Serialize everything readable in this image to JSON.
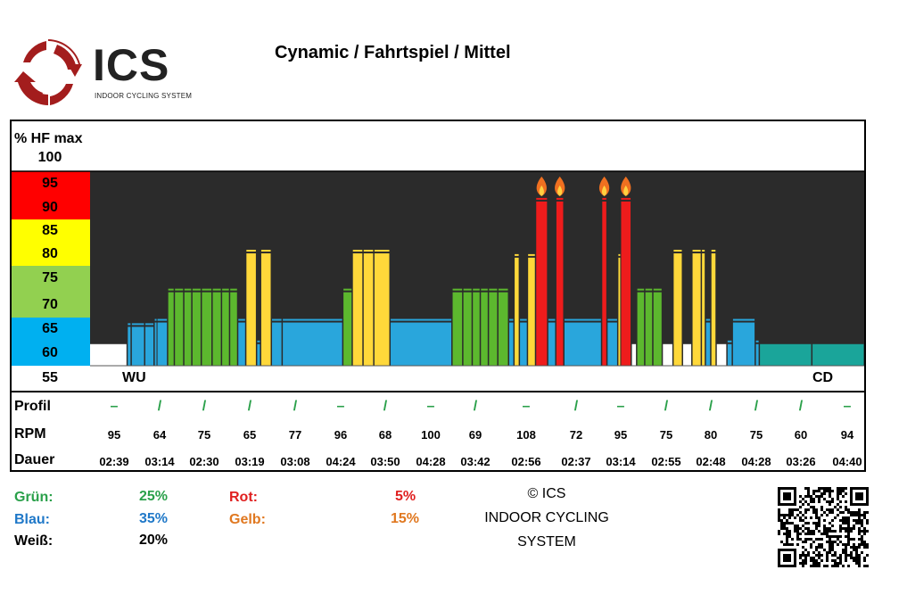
{
  "header": {
    "logo_text": "ICS",
    "logo_subtitle": "INDOOR CYCLING SYSTEM",
    "title": "Cynamic / Fahrtspiel / Mittel"
  },
  "axis": {
    "label": "% HF max",
    "levels": [
      "100",
      "95",
      "90",
      "85",
      "80",
      "75",
      "70",
      "65",
      "60",
      "55"
    ]
  },
  "markers": {
    "start": "WU",
    "end": "CD"
  },
  "rows": {
    "profil": "Profil",
    "rpm": "RPM",
    "dauer": "Dauer"
  },
  "table": {
    "profil": [
      "–",
      "/",
      "/",
      "/",
      "/",
      "–",
      "/",
      "–",
      "/",
      "–",
      "/",
      "–",
      "/",
      "/",
      "/",
      "/",
      "–"
    ],
    "rpm": [
      "95",
      "64",
      "75",
      "65",
      "77",
      "96",
      "68",
      "100",
      "69",
      "108",
      "72",
      "95",
      "75",
      "80",
      "75",
      "60",
      "94"
    ],
    "dauer": [
      "02:39",
      "03:14",
      "02:30",
      "03:19",
      "03:08",
      "04:24",
      "03:50",
      "04:28",
      "03:42",
      "02:56",
      "02:37",
      "03:14",
      "02:55",
      "02:48",
      "04:28",
      "03:26",
      "04:40"
    ]
  },
  "legend": {
    "gruen_label": "Grün:",
    "gruen_value": "25%",
    "blau_label": "Blau:",
    "blau_value": "35%",
    "weiss_label": "Weiß:",
    "weiss_value": "20%",
    "rot_label": "Rot:",
    "rot_value": "5%",
    "gelb_label": "Gelb:",
    "gelb_value": "15%"
  },
  "copyright": {
    "line1": "© ICS",
    "line2": "INDOOR CYCLING",
    "line3": "SYSTEM"
  },
  "colors": {
    "red": "#ff0000",
    "yellow": "#ffff00",
    "green": "#92d050",
    "blue": "#00b0f0",
    "white": "#ffffff",
    "plot_bg": "#2b2b2b",
    "green_text": "#2aa04a",
    "blue_text": "#1f78c8",
    "red_text": "#e02020",
    "orange_text": "#e07820"
  },
  "chart_data": {
    "type": "bar",
    "title": "Cynamic / Fahrtspiel / Mittel",
    "ylabel": "% HF max",
    "ylim": [
      55,
      100
    ],
    "x_unit": "minutes",
    "total_minutes": 57.5,
    "bars": [
      {
        "start": 0.0,
        "end": 2.8,
        "value": 60,
        "zone": "white"
      },
      {
        "start": 2.8,
        "end": 3.1,
        "value": 64,
        "zone": "blue"
      },
      {
        "start": 3.1,
        "end": 4.1,
        "value": 64,
        "zone": "blue"
      },
      {
        "start": 4.1,
        "end": 4.8,
        "value": 64,
        "zone": "blue"
      },
      {
        "start": 4.8,
        "end": 5.0,
        "value": 65,
        "zone": "blue"
      },
      {
        "start": 5.0,
        "end": 5.8,
        "value": 65,
        "zone": "blue"
      },
      {
        "start": 5.8,
        "end": 6.3,
        "value": 72,
        "zone": "green"
      },
      {
        "start": 6.3,
        "end": 7.0,
        "value": 72,
        "zone": "green"
      },
      {
        "start": 7.0,
        "end": 7.6,
        "value": 72,
        "zone": "green"
      },
      {
        "start": 7.6,
        "end": 8.3,
        "value": 72,
        "zone": "green"
      },
      {
        "start": 8.3,
        "end": 9.1,
        "value": 72,
        "zone": "green"
      },
      {
        "start": 9.1,
        "end": 9.8,
        "value": 72,
        "zone": "green"
      },
      {
        "start": 9.8,
        "end": 10.4,
        "value": 72,
        "zone": "green"
      },
      {
        "start": 10.4,
        "end": 11.0,
        "value": 72,
        "zone": "green"
      },
      {
        "start": 11.0,
        "end": 11.6,
        "value": 65,
        "zone": "blue"
      },
      {
        "start": 11.6,
        "end": 12.4,
        "value": 81,
        "zone": "yellow"
      },
      {
        "start": 12.4,
        "end": 12.7,
        "value": 60,
        "zone": "blue"
      },
      {
        "start": 12.7,
        "end": 13.5,
        "value": 81,
        "zone": "yellow"
      },
      {
        "start": 13.5,
        "end": 14.3,
        "value": 65,
        "zone": "blue"
      },
      {
        "start": 14.3,
        "end": 18.8,
        "value": 65,
        "zone": "blue"
      },
      {
        "start": 18.8,
        "end": 19.5,
        "value": 72,
        "zone": "green"
      },
      {
        "start": 19.5,
        "end": 20.3,
        "value": 81,
        "zone": "yellow"
      },
      {
        "start": 20.3,
        "end": 21.1,
        "value": 81,
        "zone": "yellow"
      },
      {
        "start": 21.1,
        "end": 22.3,
        "value": 81,
        "zone": "yellow"
      },
      {
        "start": 22.3,
        "end": 26.9,
        "value": 65,
        "zone": "blue"
      },
      {
        "start": 26.9,
        "end": 27.7,
        "value": 72,
        "zone": "green"
      },
      {
        "start": 27.7,
        "end": 28.4,
        "value": 72,
        "zone": "green"
      },
      {
        "start": 28.4,
        "end": 29.0,
        "value": 72,
        "zone": "green"
      },
      {
        "start": 29.0,
        "end": 29.6,
        "value": 72,
        "zone": "green"
      },
      {
        "start": 29.6,
        "end": 30.3,
        "value": 72,
        "zone": "green"
      },
      {
        "start": 30.3,
        "end": 31.1,
        "value": 72,
        "zone": "green"
      },
      {
        "start": 31.1,
        "end": 31.5,
        "value": 65,
        "zone": "blue"
      },
      {
        "start": 31.5,
        "end": 31.9,
        "value": 80,
        "zone": "yellow"
      },
      {
        "start": 31.9,
        "end": 32.5,
        "value": 65,
        "zone": "blue"
      },
      {
        "start": 32.5,
        "end": 33.1,
        "value": 80,
        "zone": "yellow"
      },
      {
        "start": 33.1,
        "end": 34.0,
        "value": 93,
        "zone": "red"
      },
      {
        "start": 34.0,
        "end": 34.6,
        "value": 65,
        "zone": "blue"
      },
      {
        "start": 34.6,
        "end": 35.2,
        "value": 93,
        "zone": "red"
      },
      {
        "start": 35.2,
        "end": 38.0,
        "value": 65,
        "zone": "blue"
      },
      {
        "start": 38.0,
        "end": 38.4,
        "value": 93,
        "zone": "red"
      },
      {
        "start": 38.4,
        "end": 39.2,
        "value": 65,
        "zone": "blue"
      },
      {
        "start": 39.2,
        "end": 39.4,
        "value": 80,
        "zone": "yellow"
      },
      {
        "start": 39.4,
        "end": 40.2,
        "value": 93,
        "zone": "red"
      },
      {
        "start": 40.2,
        "end": 40.6,
        "value": 60,
        "zone": "white"
      },
      {
        "start": 40.6,
        "end": 41.2,
        "value": 72,
        "zone": "green"
      },
      {
        "start": 41.2,
        "end": 41.8,
        "value": 72,
        "zone": "green"
      },
      {
        "start": 41.8,
        "end": 42.5,
        "value": 72,
        "zone": "green"
      },
      {
        "start": 42.5,
        "end": 43.3,
        "value": 60,
        "zone": "white"
      },
      {
        "start": 43.3,
        "end": 44.0,
        "value": 81,
        "zone": "yellow"
      },
      {
        "start": 44.0,
        "end": 44.7,
        "value": 60,
        "zone": "white"
      },
      {
        "start": 44.7,
        "end": 45.4,
        "value": 81,
        "zone": "yellow"
      },
      {
        "start": 45.4,
        "end": 45.7,
        "value": 81,
        "zone": "yellow"
      },
      {
        "start": 45.7,
        "end": 46.1,
        "value": 65,
        "zone": "blue"
      },
      {
        "start": 46.1,
        "end": 46.5,
        "value": 81,
        "zone": "yellow"
      },
      {
        "start": 46.5,
        "end": 47.3,
        "value": 60,
        "zone": "white"
      },
      {
        "start": 47.3,
        "end": 47.7,
        "value": 60,
        "zone": "blue"
      },
      {
        "start": 47.7,
        "end": 49.4,
        "value": 65,
        "zone": "blue"
      },
      {
        "start": 49.4,
        "end": 49.7,
        "value": 60,
        "zone": "blue"
      },
      {
        "start": 49.7,
        "end": 53.6,
        "value": 60,
        "zone": "teal"
      },
      {
        "start": 53.6,
        "end": 57.5,
        "value": 60,
        "zone": "teal"
      }
    ],
    "flames_on_zone": "red"
  }
}
